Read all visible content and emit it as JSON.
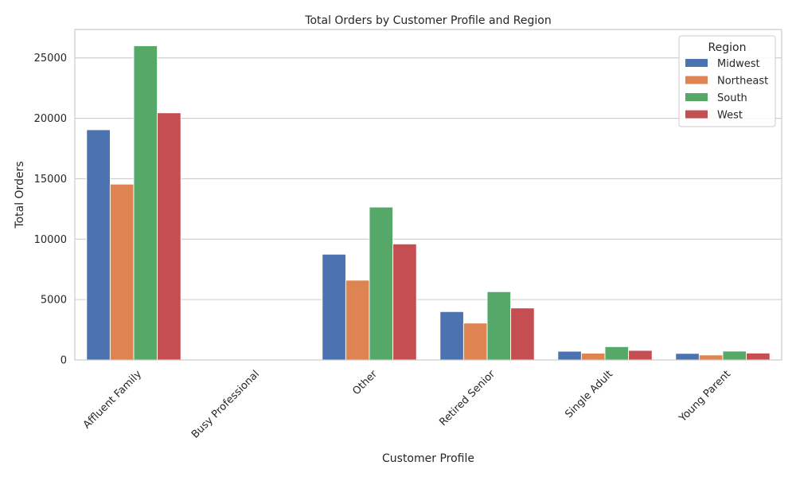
{
  "chart_data": {
    "type": "bar",
    "title": "Total Orders by Customer Profile and Region",
    "xlabel": "Customer Profile",
    "ylabel": "Total Orders",
    "categories": [
      "Affluent Family",
      "Busy Professional",
      "Other",
      "Retired Senior",
      "Single Adult",
      "Young Parent"
    ],
    "series": [
      {
        "name": "Midwest",
        "color": "#4C72B0",
        "values": [
          19050,
          0,
          8750,
          4000,
          720,
          540
        ]
      },
      {
        "name": "Northeast",
        "color": "#DD8452",
        "values": [
          14550,
          0,
          6600,
          3050,
          560,
          410
        ]
      },
      {
        "name": "South",
        "color": "#55A868",
        "values": [
          26000,
          0,
          12650,
          5650,
          1100,
          730
        ]
      },
      {
        "name": "West",
        "color": "#C44E52",
        "values": [
          20450,
          0,
          9600,
          4300,
          790,
          570
        ]
      }
    ],
    "ylim": [
      0,
      27350
    ],
    "yticks": [
      0,
      5000,
      10000,
      15000,
      20000,
      25000
    ],
    "grid": true,
    "legend": {
      "title": "Region",
      "position": "top-right"
    }
  }
}
